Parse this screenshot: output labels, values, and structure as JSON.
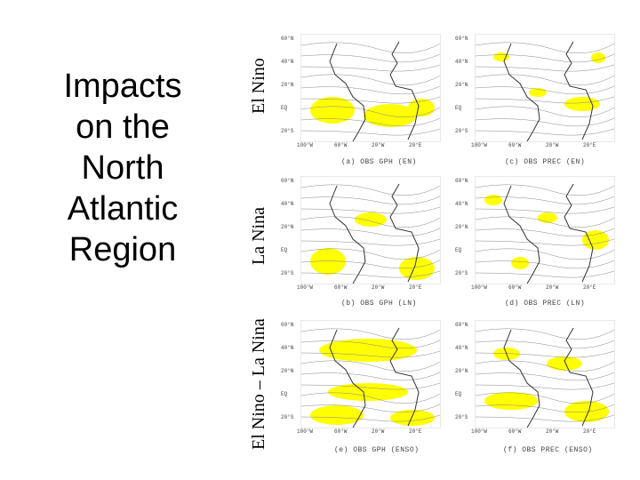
{
  "title_lines": [
    "Impacts",
    "on the",
    "North",
    "Atlantic",
    "Region"
  ],
  "row_labels": [
    "El Nino",
    "La Nina",
    "El Nino – La Nina"
  ],
  "captions": [
    "(a) OBS GPH (EN)",
    "(c) OBS PREC (EN)",
    "(b) OBS GPH (LN)",
    "(d) OBS PREC (LN)",
    "(e) OBS GPH (ENSO)",
    "(f) OBS PREC (ENSO)"
  ],
  "lat_ticks": [
    "60°N",
    "40°N",
    "20°N",
    "EQ",
    "20°S"
  ],
  "lon_ticks": [
    "100°W",
    "60°W",
    "20°W",
    "20°E"
  ],
  "colors": {
    "shading": "#ffff00",
    "map_line": "#333333",
    "contour": "#888888"
  }
}
